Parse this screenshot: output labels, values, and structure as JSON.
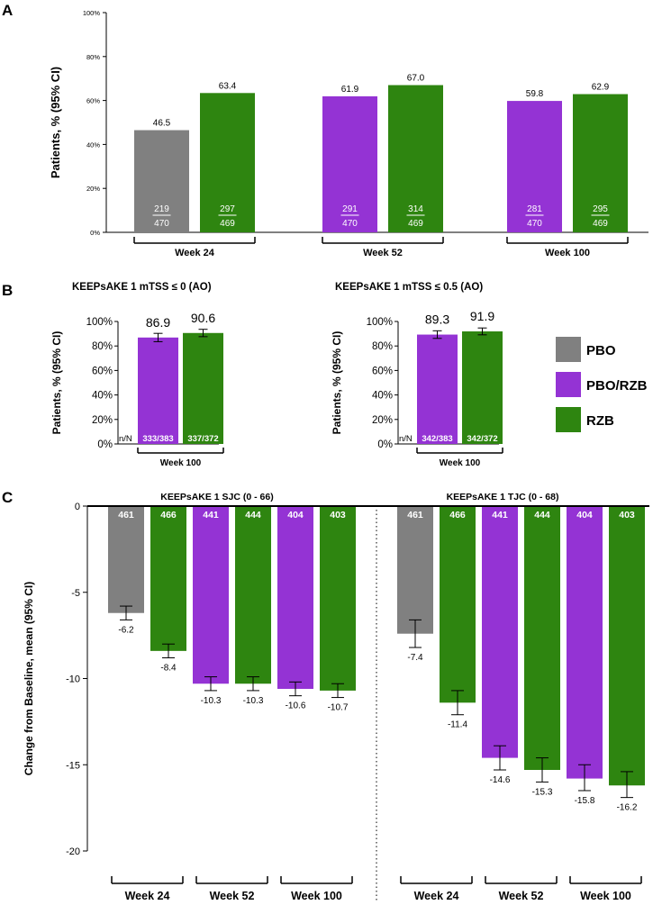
{
  "colors": {
    "pbo": "#808080",
    "pbo_rzb": "#9433d4",
    "rzb": "#2e8510",
    "axis": "#000000"
  },
  "legend": [
    {
      "label": "PBO",
      "color_key": "pbo"
    },
    {
      "label": "PBO/RZB",
      "color_key": "pbo_rzb"
    },
    {
      "label": "RZB",
      "color_key": "rzb"
    }
  ],
  "panel_labels": {
    "a": "A",
    "b": "B",
    "c": "C"
  },
  "chart_data": [
    {
      "id": "A",
      "type": "bar",
      "ylabel": "Patients, % (95% CI)",
      "ylim": [
        0,
        100
      ],
      "yticks": [
        "0%",
        "20%",
        "40%",
        "60%",
        "80%",
        "100%"
      ],
      "groups": [
        {
          "label": "Week 24",
          "bars": [
            {
              "arm": "pbo",
              "value": 46.5,
              "n": "219",
              "N": "470"
            },
            {
              "arm": "rzb",
              "value": 63.4,
              "n": "297",
              "N": "469"
            }
          ]
        },
        {
          "label": "Week 52",
          "bars": [
            {
              "arm": "pbo_rzb",
              "value": 61.9,
              "n": "291",
              "N": "470"
            },
            {
              "arm": "rzb",
              "value": 67.0,
              "n": "314",
              "N": "469"
            }
          ]
        },
        {
          "label": "Week 100",
          "bars": [
            {
              "arm": "pbo_rzb",
              "value": 59.8,
              "n": "281",
              "N": "470"
            },
            {
              "arm": "rzb",
              "value": 62.9,
              "n": "295",
              "N": "469"
            }
          ]
        }
      ]
    },
    {
      "id": "B1",
      "type": "bar",
      "title": "KEEPsAKE 1 mTSS ≤ 0 (AO)",
      "ylabel": "Patients, % (95% CI)",
      "ylim": [
        0,
        100
      ],
      "yticks": [
        "0%",
        "20%",
        "40%",
        "60%",
        "80%",
        "100%"
      ],
      "nN_label": "n/N",
      "group_label": "Week 100",
      "bars": [
        {
          "arm": "pbo_rzb",
          "value": 86.9,
          "label": "86.9",
          "nN": "333/383",
          "ci": [
            83.5,
            90.3
          ]
        },
        {
          "arm": "rzb",
          "value": 90.6,
          "label": "90.6",
          "nN": "337/372",
          "ci": [
            87.6,
            93.6
          ]
        }
      ]
    },
    {
      "id": "B2",
      "type": "bar",
      "title": "KEEPsAKE 1 mTSS ≤ 0.5 (AO)",
      "ylabel": "Patients, % (95% CI)",
      "ylim": [
        0,
        100
      ],
      "yticks": [
        "0%",
        "20%",
        "40%",
        "60%",
        "80%",
        "100%"
      ],
      "nN_label": "n/N",
      "group_label": "Week 100",
      "bars": [
        {
          "arm": "pbo_rzb",
          "value": 89.3,
          "label": "89.3",
          "nN": "342/383",
          "ci": [
            86.2,
            92.4
          ]
        },
        {
          "arm": "rzb",
          "value": 91.9,
          "label": "91.9",
          "nN": "342/372",
          "ci": [
            89.1,
            94.7
          ]
        }
      ]
    },
    {
      "id": "C",
      "type": "bar",
      "ylabel": "Change from Baseline, mean  (95% CI)",
      "ylim": [
        -20,
        0
      ],
      "yticks": [
        "0",
        "-5",
        "-10",
        "-15",
        "-20"
      ],
      "panels": [
        {
          "title": "KEEPsAKE 1 SJC (0 - 66)",
          "bars": [
            {
              "arm": "pbo",
              "value": -6.2,
              "label": "-6.2",
              "n": "461",
              "ci": [
                -6.6,
                -5.8
              ]
            },
            {
              "arm": "rzb",
              "value": -8.4,
              "label": "-8.4",
              "n": "466",
              "ci": [
                -8.8,
                -8.0
              ]
            },
            {
              "arm": "pbo_rzb",
              "value": -10.3,
              "label": "-10.3",
              "n": "441",
              "ci": [
                -10.7,
                -9.9
              ]
            },
            {
              "arm": "rzb",
              "value": -10.3,
              "label": "-10.3",
              "n": "444",
              "ci": [
                -10.7,
                -9.9
              ]
            },
            {
              "arm": "pbo_rzb",
              "value": -10.6,
              "label": "-10.6",
              "n": "404",
              "ci": [
                -11.0,
                -10.2
              ]
            },
            {
              "arm": "rzb",
              "value": -10.7,
              "label": "-10.7",
              "n": "403",
              "ci": [
                -11.1,
                -10.3
              ]
            }
          ]
        },
        {
          "title": "KEEPsAKE 1 TJC (0 - 68)",
          "bars": [
            {
              "arm": "pbo",
              "value": -7.4,
              "label": "-7.4",
              "n": "461",
              "ci": [
                -8.2,
                -6.6
              ]
            },
            {
              "arm": "rzb",
              "value": -11.4,
              "label": "-11.4",
              "n": "466",
              "ci": [
                -12.1,
                -10.7
              ]
            },
            {
              "arm": "pbo_rzb",
              "value": -14.6,
              "label": "-14.6",
              "n": "441",
              "ci": [
                -15.3,
                -13.9
              ]
            },
            {
              "arm": "rzb",
              "value": -15.3,
              "label": "-15.3",
              "n": "444",
              "ci": [
                -16.0,
                -14.6
              ]
            },
            {
              "arm": "pbo_rzb",
              "value": -15.8,
              "label": "-15.8",
              "n": "404",
              "ci": [
                -16.5,
                -15.0
              ]
            },
            {
              "arm": "rzb",
              "value": -16.2,
              "label": "-16.2",
              "n": "403",
              "ci": [
                -16.9,
                -15.4
              ]
            }
          ]
        }
      ],
      "week_labels": [
        "Week 24",
        "Week 52",
        "Week 100"
      ]
    }
  ]
}
